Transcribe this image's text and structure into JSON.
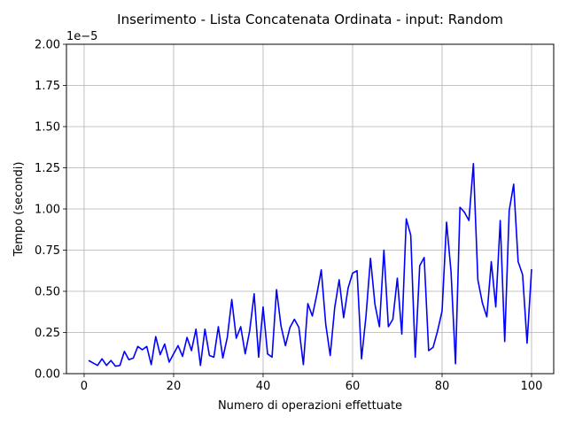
{
  "chart_data": {
    "type": "line",
    "title": "Inserimento - Lista Concatenata Ordinata - input: Random",
    "xlabel": "Numero di operazioni effettuate",
    "ylabel": "Tempo (secondi)",
    "y_scale_label": "1e−5",
    "xlim": [
      -3.95,
      104.95
    ],
    "ylim": [
      0,
      2.0
    ],
    "x_ticks": [
      0,
      20,
      40,
      60,
      80,
      100
    ],
    "y_ticks": [
      0.0,
      0.25,
      0.5,
      0.75,
      1.0,
      1.25,
      1.5,
      1.75,
      2.0
    ],
    "x_tick_labels": [
      "0",
      "20",
      "40",
      "60",
      "80",
      "100"
    ],
    "y_tick_labels": [
      "0.00",
      "0.25",
      "0.50",
      "0.75",
      "1.00",
      "1.25",
      "1.50",
      "1.75",
      "2.00"
    ],
    "grid": true,
    "color": "#0000ff",
    "series": [
      {
        "x": [
          1,
          2,
          3,
          4,
          5,
          6,
          7,
          8,
          9,
          10,
          11,
          12,
          13,
          14,
          15,
          16,
          17,
          18,
          19,
          20,
          21,
          22,
          23,
          24,
          25,
          26,
          27,
          28,
          29,
          30,
          31,
          32,
          33,
          34,
          35,
          36,
          37,
          38,
          39,
          40,
          41,
          42,
          43,
          44,
          45,
          46,
          47,
          48,
          49,
          50,
          51,
          52,
          53,
          54,
          55,
          56,
          57,
          58,
          59,
          60,
          61,
          62,
          63,
          64,
          65,
          66,
          67,
          68,
          69,
          70,
          71,
          72,
          73,
          74,
          75,
          76,
          77,
          78,
          79,
          80,
          81,
          82,
          83,
          84,
          85,
          86,
          87,
          88,
          89,
          90,
          91,
          92,
          93,
          94,
          95,
          96,
          97,
          98,
          99,
          100
        ],
        "values": [
          0.08,
          0.065,
          0.05,
          0.09,
          0.05,
          0.08,
          0.045,
          0.05,
          0.135,
          0.085,
          0.095,
          0.165,
          0.145,
          0.165,
          0.055,
          0.225,
          0.115,
          0.18,
          0.07,
          0.12,
          0.17,
          0.105,
          0.22,
          0.14,
          0.27,
          0.05,
          0.27,
          0.11,
          0.1,
          0.285,
          0.095,
          0.22,
          0.45,
          0.215,
          0.285,
          0.12,
          0.26,
          0.485,
          0.1,
          0.405,
          0.12,
          0.1,
          0.51,
          0.29,
          0.17,
          0.28,
          0.33,
          0.28,
          0.055,
          0.425,
          0.35,
          0.48,
          0.63,
          0.3,
          0.11,
          0.4,
          0.57,
          0.34,
          0.52,
          0.61,
          0.625,
          0.09,
          0.35,
          0.7,
          0.42,
          0.285,
          0.75,
          0.285,
          0.33,
          0.58,
          0.24,
          0.94,
          0.84,
          0.1,
          0.655,
          0.705,
          0.14,
          0.16,
          0.26,
          0.38,
          0.92,
          0.62,
          0.06,
          1.01,
          0.98,
          0.93,
          1.275,
          0.57,
          0.43,
          0.345,
          0.68,
          0.405,
          0.93,
          0.195,
          0.99,
          1.15,
          0.68,
          0.6,
          0.185,
          0.635
        ]
      }
    ]
  }
}
